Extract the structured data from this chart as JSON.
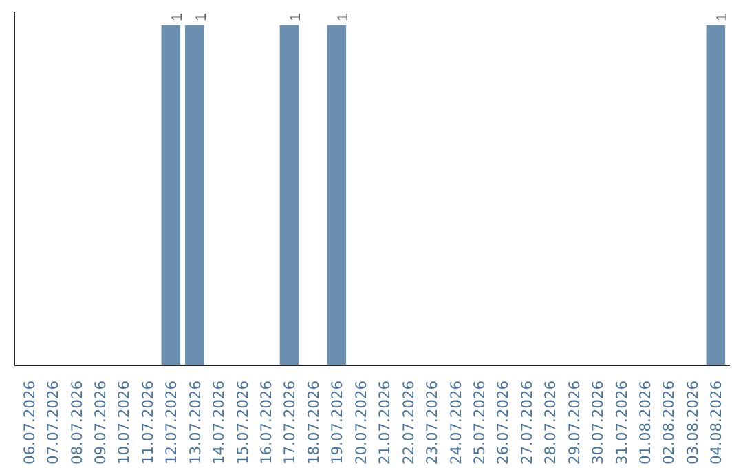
{
  "chart_data": {
    "type": "bar",
    "categories": [
      "06.07.2026",
      "07.07.2026",
      "08.07.2026",
      "09.07.2026",
      "10.07.2026",
      "11.07.2026",
      "12.07.2026",
      "13.07.2026",
      "14.07.2026",
      "15.07.2026",
      "16.07.2026",
      "17.07.2026",
      "18.07.2026",
      "19.07.2026",
      "20.07.2026",
      "21.07.2026",
      "22.07.2026",
      "23.07.2026",
      "24.07.2026",
      "25.07.2026",
      "26.07.2026",
      "27.07.2026",
      "28.07.2026",
      "29.07.2026",
      "30.07.2026",
      "31.07.2026",
      "01.08.2026",
      "02.08.2026",
      "03.08.2026",
      "04.08.2026"
    ],
    "values": [
      0,
      0,
      0,
      0,
      0,
      0,
      1,
      1,
      0,
      0,
      0,
      1,
      0,
      1,
      0,
      0,
      0,
      0,
      0,
      0,
      0,
      0,
      0,
      0,
      0,
      0,
      0,
      0,
      0,
      1
    ],
    "value_labels": [
      null,
      null,
      null,
      null,
      null,
      null,
      "1",
      "1",
      null,
      null,
      null,
      "1",
      null,
      "1",
      null,
      null,
      null,
      null,
      null,
      null,
      null,
      null,
      null,
      null,
      null,
      null,
      null,
      null,
      null,
      "1"
    ],
    "color": "#6b8fae",
    "tick_labels": "x",
    "grid": false
  }
}
